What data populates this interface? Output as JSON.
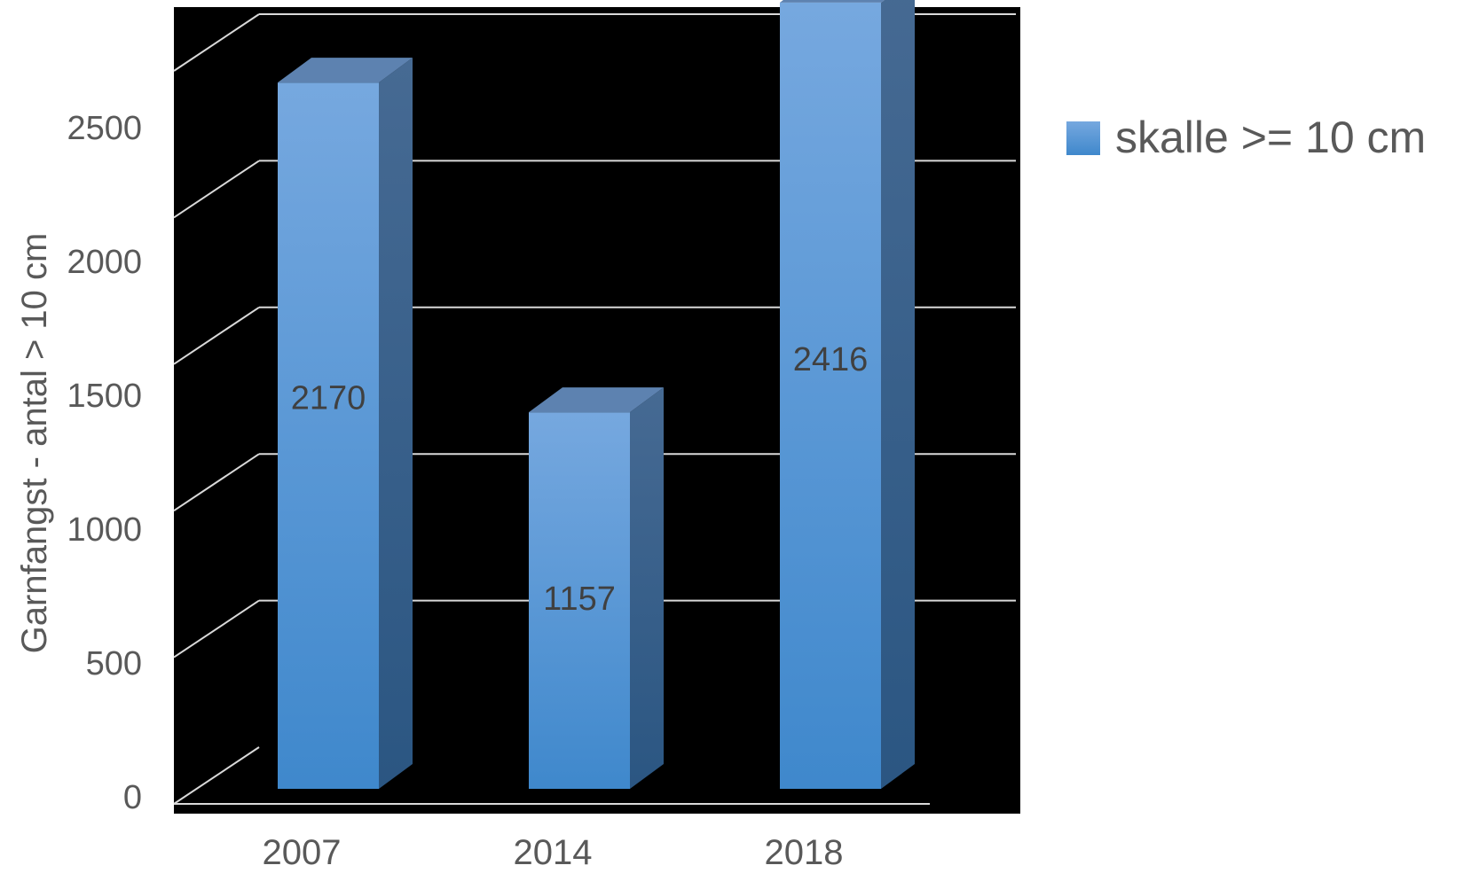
{
  "chart_data": {
    "type": "bar",
    "categories": [
      "2007",
      "2014",
      "2018"
    ],
    "series": [
      {
        "name": "skalle >= 10 cm",
        "values": [
          2170,
          1157,
          2416
        ]
      }
    ],
    "data_labels": [
      "2170",
      "1157",
      "2416"
    ],
    "ylabel": "Garnfangst - antal > 10 cm",
    "xlabel": "",
    "ylim": [
      0,
      2500
    ],
    "yticks": [
      "0",
      "500",
      "1000",
      "1500",
      "2000",
      "2500"
    ],
    "grid": true,
    "three_d": true,
    "legend_position": "right",
    "colors": {
      "plot_background": "#000000",
      "bar_front_top": "#76a8df",
      "bar_front_bottom": "#3f88cc",
      "bar_side": "#2f5f8e",
      "bar_top": "#5d82b0",
      "gridline": "#d9d9d9",
      "text": "#595959",
      "data_label": "#404040"
    }
  }
}
